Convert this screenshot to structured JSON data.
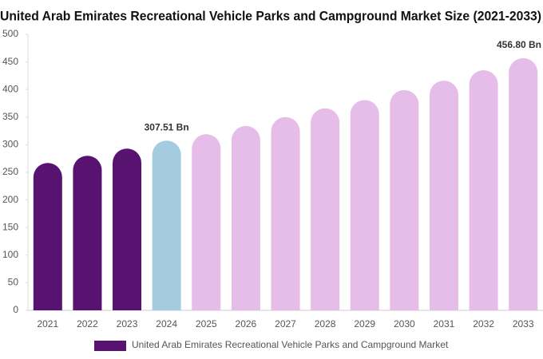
{
  "chart_data": {
    "type": "bar",
    "title": "United Arab Emirates Recreational Vehicle Parks and Campground Market Size (2021-2033)",
    "categories": [
      "2021",
      "2022",
      "2023",
      "2024",
      "2025",
      "2026",
      "2027",
      "2028",
      "2029",
      "2030",
      "2031",
      "2032",
      "2033"
    ],
    "series": [
      {
        "name": "United Arab Emirates Recreational Vehicle Parks and Campground Market",
        "color": "#581270",
        "values": [
          267,
          280,
          293,
          307.51,
          319,
          334,
          350,
          366,
          381,
          399,
          416,
          435,
          456.8
        ],
        "value_labels": [
          null,
          null,
          null,
          "307.51 Bn",
          null,
          null,
          null,
          null,
          null,
          null,
          null,
          null,
          "456.80 Bn"
        ],
        "colors": [
          "#581270",
          "#581270",
          "#581270",
          "#a4cbdf",
          "#e6bde8",
          "#e6bde8",
          "#e6bde8",
          "#e6bde8",
          "#e6bde8",
          "#e6bde8",
          "#e6bde8",
          "#e6bde8",
          "#e6bde8"
        ]
      }
    ],
    "ylim": [
      0,
      500
    ],
    "yticks": [
      0,
      50,
      100,
      150,
      200,
      250,
      300,
      350,
      400,
      450,
      500
    ],
    "grid": false
  }
}
